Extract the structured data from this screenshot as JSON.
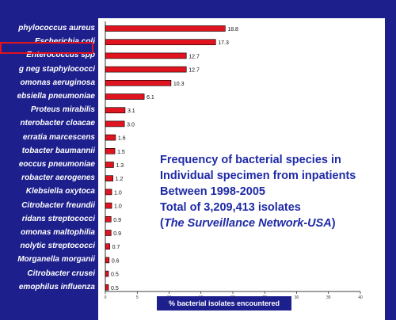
{
  "colors": {
    "background": "#ffffff",
    "panel": "#1d1f8c",
    "bar_fill": "#e0141e",
    "bar_stroke": "#000000",
    "caption_text": "#1f2aa6",
    "highlight_border": "#e0141e"
  },
  "caption": {
    "line1": "Frequency of bacterial species in",
    "line2": "Individual specimen from inpatients",
    "line3": "Between 1998-2005",
    "line4": "Total of 3,209,413 isolates",
    "line5_open": "(",
    "line5_source": "The Surveillance Network-USA",
    "line5_close": ")"
  },
  "chart_data": {
    "type": "bar",
    "orientation": "horizontal",
    "categories": [
      "phylococcus aureus",
      "Escherichia coli",
      "Enterococcus spp",
      "g neg staphylococci",
      "omonas aeruginosa",
      "ebsiella pneumoniae",
      "Proteus mirabilis",
      "nterobacter cloacae",
      "erratia marcescens",
      "tobacter baumannii",
      "eoccus pneumoniae",
      "robacter aerogenes",
      "Klebsiella oxytoca",
      "Citrobacter freundii",
      "ridans streptococci",
      "omonas maltophilia",
      "nolytic streptococci",
      "Morganella morganii",
      "Citrobacter crusei",
      "emophilus influenza"
    ],
    "values": [
      18.8,
      17.3,
      12.7,
      12.7,
      10.3,
      6.1,
      3.1,
      3.0,
      1.6,
      1.5,
      1.3,
      1.2,
      1.0,
      1.0,
      0.9,
      0.9,
      0.7,
      0.6,
      0.5,
      0.5
    ],
    "value_labels": [
      "18.8",
      "17.3",
      "12.7",
      "12.7",
      "10.3",
      "6.1",
      "3.1",
      "3.0",
      "1.6",
      "1.5",
      "1.3",
      "1.2",
      "1.0",
      "1.0",
      "0.9",
      "0.9",
      "0.7",
      "0.6",
      "0.5",
      "0.5"
    ],
    "xlabel": "% bacterial isolates encountered",
    "xlim": [
      0,
      40
    ],
    "xticks": [
      "0",
      "5",
      "10",
      "15",
      "20",
      "25",
      "30",
      "35",
      "40"
    ],
    "highlighted_category": "phylococcus aureus",
    "grid": false,
    "legend": "none"
  }
}
